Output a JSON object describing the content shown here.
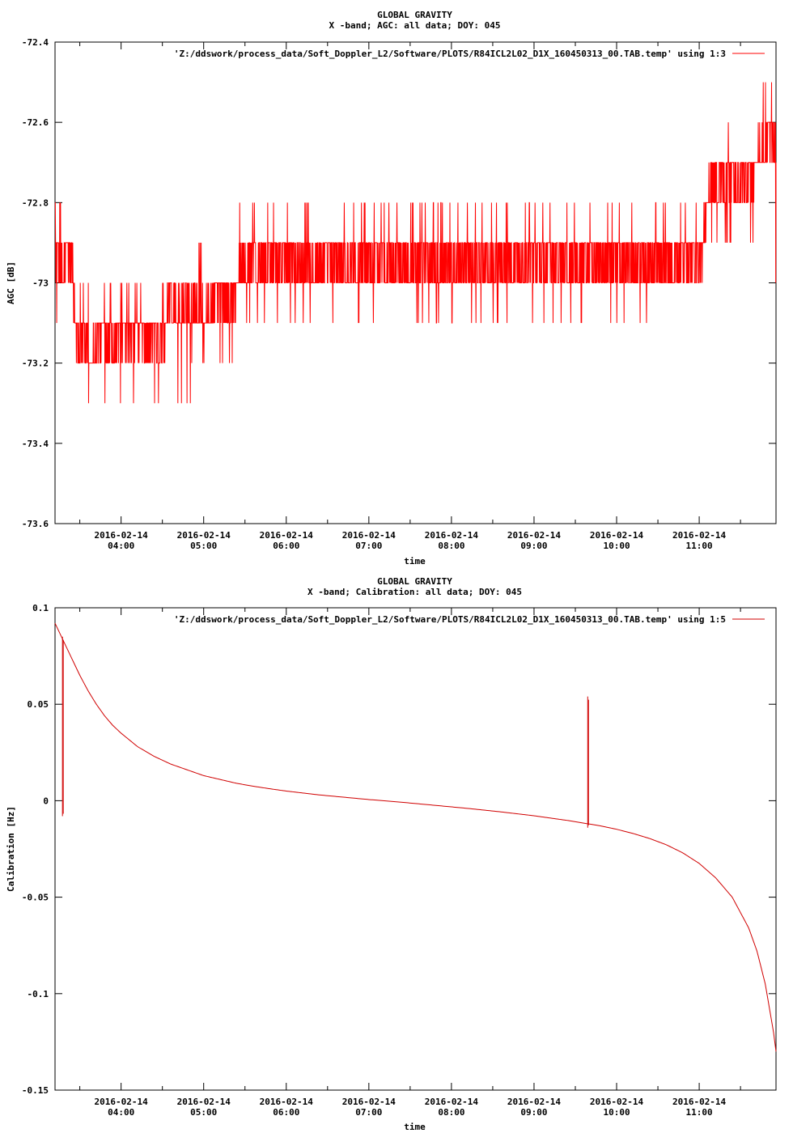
{
  "chart_data": [
    {
      "type": "line",
      "title": "GLOBAL GRAVITY",
      "subtitle": "X -band; AGC: all data; DOY: 045",
      "xlabel": "time",
      "ylabel": "AGC [dB]",
      "ylim": [
        -73.6,
        -72.4
      ],
      "yticks": [
        -72.4,
        -72.6,
        -72.8,
        -73,
        -73.2,
        -73.4,
        -73.6
      ],
      "ytick_labels": [
        "-72.4",
        "-72.6",
        "-72.8",
        "-73",
        "-73.2",
        "-73.4",
        "-73.6"
      ],
      "xlim_hours": [
        3.2,
        11.93
      ],
      "xtick_hours": [
        4,
        5,
        6,
        7,
        8,
        9,
        10,
        11
      ],
      "xtick_labels": [
        [
          "2016-02-14",
          "04:00"
        ],
        [
          "2016-02-14",
          "05:00"
        ],
        [
          "2016-02-14",
          "06:00"
        ],
        [
          "2016-02-14",
          "07:00"
        ],
        [
          "2016-02-14",
          "08:00"
        ],
        [
          "2016-02-14",
          "09:00"
        ],
        [
          "2016-02-14",
          "10:00"
        ],
        [
          "2016-02-14",
          "11:00"
        ]
      ],
      "legend": {
        "label": "'Z:/ddswork/process_data/Soft_Doppler_L2/Software/PLOTS/R84ICL2L02_D1X_160450313_00.TAB.temp' using 1:3",
        "placement": "top-right"
      },
      "color": "#ff0000",
      "series": [
        {
          "x_hours": [
            3.2,
            3.25,
            3.3,
            3.35,
            3.4,
            3.45,
            3.5,
            3.55,
            3.6,
            3.7,
            3.8,
            3.9,
            4.0,
            4.1,
            4.2,
            4.3,
            4.4,
            4.5,
            4.6,
            4.7,
            4.8,
            4.9,
            5.0,
            5.1,
            5.2,
            5.3,
            5.4,
            5.5,
            6.0,
            7.0,
            8.0,
            9.0,
            10.0,
            11.0,
            11.15,
            11.3,
            11.5,
            11.7,
            11.85,
            11.93
          ],
          "values": [
            -72.9,
            -72.95,
            -73.0,
            -72.9,
            -72.95,
            -73.1,
            -73.15,
            -73.1,
            -73.2,
            -73.15,
            -73.1,
            -73.15,
            -73.1,
            -73.15,
            -73.1,
            -73.15,
            -73.1,
            -73.15,
            -73.05,
            -73.1,
            -73.05,
            -73.05,
            -73.1,
            -73.05,
            -73.0,
            -73.05,
            -73.0,
            -72.95,
            -72.95,
            -72.95,
            -72.95,
            -72.95,
            -72.95,
            -72.95,
            -72.75,
            -72.75,
            -72.75,
            -72.7,
            -72.65,
            -72.7
          ],
          "noise_upper": [
            -72.8,
            -72.8,
            -72.8,
            -72.8,
            -72.9,
            -73.0,
            -73.0,
            -73.0,
            -73.0,
            -73.0,
            -73.0,
            -73.0,
            -73.0,
            -73.0,
            -73.0,
            -73.0,
            -73.0,
            -73.0,
            -73.0,
            -73.0,
            -73.0,
            -72.9,
            -72.9,
            -72.9,
            -72.8,
            -72.8,
            -72.8,
            -72.8,
            -72.8,
            -72.8,
            -72.8,
            -72.8,
            -72.8,
            -72.8,
            -72.6,
            -72.6,
            -72.6,
            -72.6,
            -72.5,
            -72.6
          ],
          "noise_lower": [
            -73.1,
            -73.1,
            -73.1,
            -73.1,
            -73.2,
            -73.3,
            -73.3,
            -73.3,
            -73.3,
            -73.3,
            -73.3,
            -73.3,
            -73.3,
            -73.3,
            -73.3,
            -73.3,
            -73.3,
            -73.3,
            -73.3,
            -73.3,
            -73.3,
            -73.2,
            -73.2,
            -73.2,
            -73.2,
            -73.2,
            -73.2,
            -73.1,
            -73.1,
            -73.1,
            -73.1,
            -73.1,
            -73.1,
            -73.2,
            -72.9,
            -72.9,
            -72.9,
            -72.9,
            -73.0,
            -73.0
          ]
        }
      ]
    },
    {
      "type": "line",
      "title": "GLOBAL GRAVITY",
      "subtitle": "X -band; Calibration: all data; DOY: 045",
      "xlabel": "time",
      "ylabel": "Calibration [Hz]",
      "ylim": [
        -0.15,
        0.1
      ],
      "yticks": [
        0.1,
        0.05,
        0,
        -0.05,
        -0.1,
        -0.15
      ],
      "ytick_labels": [
        "0.1",
        "0.05",
        "0",
        "-0.05",
        "-0.1",
        "-0.15"
      ],
      "xlim_hours": [
        3.2,
        11.93
      ],
      "xtick_hours": [
        4,
        5,
        6,
        7,
        8,
        9,
        10,
        11
      ],
      "xtick_labels": [
        [
          "2016-02-14",
          "04:00"
        ],
        [
          "2016-02-14",
          "05:00"
        ],
        [
          "2016-02-14",
          "06:00"
        ],
        [
          "2016-02-14",
          "07:00"
        ],
        [
          "2016-02-14",
          "08:00"
        ],
        [
          "2016-02-14",
          "09:00"
        ],
        [
          "2016-02-14",
          "10:00"
        ],
        [
          "2016-02-14",
          "11:00"
        ]
      ],
      "legend": {
        "label": "'Z:/ddswork/process_data/Soft_Doppler_L2/Software/PLOTS/R84ICL2L02_D1X_160450313_00.TAB.temp' using 1:5",
        "placement": "top-right"
      },
      "color": "#d00000",
      "series": [
        {
          "x_hours": [
            3.2,
            3.3,
            3.4,
            3.5,
            3.6,
            3.7,
            3.8,
            3.9,
            4.0,
            4.2,
            4.4,
            4.6,
            4.8,
            5.0,
            5.2,
            5.4,
            5.6,
            5.8,
            6.0,
            6.2,
            6.4,
            6.6,
            6.8,
            7.0,
            7.2,
            7.4,
            7.6,
            7.8,
            8.0,
            8.2,
            8.4,
            8.6,
            8.8,
            9.0,
            9.2,
            9.4,
            9.6,
            9.8,
            10.0,
            10.2,
            10.4,
            10.6,
            10.8,
            11.0,
            11.2,
            11.4,
            11.6,
            11.7,
            11.8,
            11.9,
            11.93
          ],
          "values": [
            0.092,
            0.083,
            0.074,
            0.065,
            0.057,
            0.05,
            0.044,
            0.039,
            0.035,
            0.028,
            0.023,
            0.019,
            0.016,
            0.013,
            0.011,
            0.009,
            0.0075,
            0.0062,
            0.005,
            0.004,
            0.003,
            0.0022,
            0.0014,
            0.0006,
            -0.0001,
            -0.0008,
            -0.0016,
            -0.0024,
            -0.0032,
            -0.004,
            -0.0049,
            -0.0058,
            -0.0068,
            -0.0078,
            -0.009,
            -0.0102,
            -0.0116,
            -0.013,
            -0.0148,
            -0.017,
            -0.0196,
            -0.0228,
            -0.027,
            -0.0325,
            -0.04,
            -0.05,
            -0.066,
            -0.078,
            -0.095,
            -0.12,
            -0.13
          ]
        }
      ],
      "spikes": [
        {
          "x_hours": 3.29,
          "top": 0.085,
          "bottom": -0.008
        },
        {
          "x_hours": 9.65,
          "top": 0.054,
          "bottom": -0.014
        }
      ]
    }
  ]
}
